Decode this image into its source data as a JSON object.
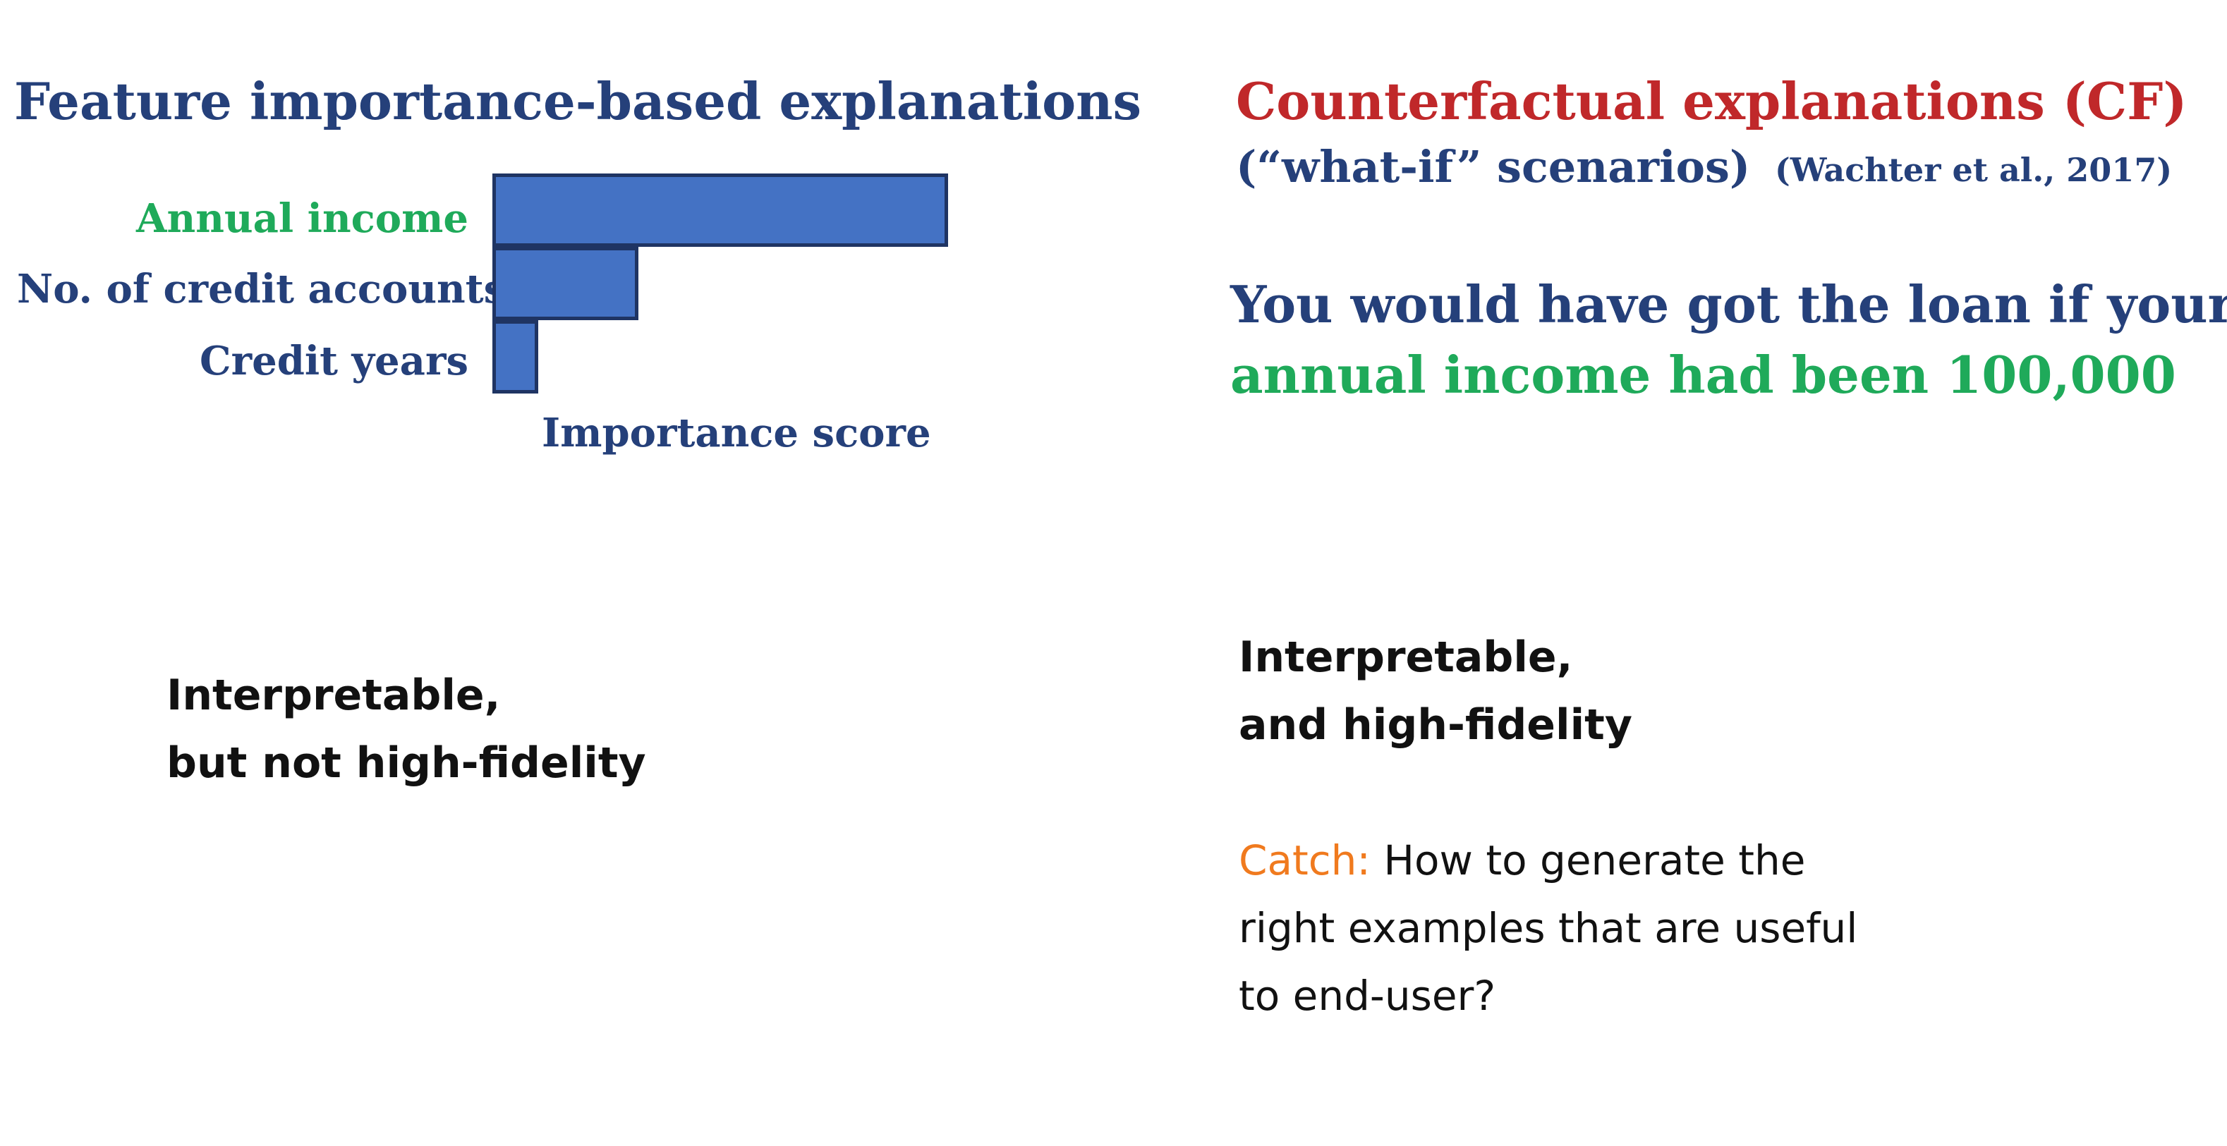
{
  "left": {
    "heading": "Feature importance-based explanations",
    "note_line1": "Interpretable,",
    "note_line2": "but not high-fidelity"
  },
  "chart_data": {
    "type": "bar",
    "orientation": "horizontal",
    "categories": [
      "Annual income",
      "No. of credit accounts",
      "Credit years"
    ],
    "values": [
      1.0,
      0.32,
      0.1
    ],
    "xlabel": "Importance score",
    "label_colors": [
      "#1faa5a",
      "#25407a",
      "#25407a"
    ],
    "bar_color": "#4472c4",
    "bar_edge_color": "#1f3463",
    "grid": false
  },
  "right": {
    "heading": "Counterfactual explanations (CF)",
    "subheading": "(“what-if” scenarios)",
    "citation": "(Wachter et al., 2017)",
    "cf_line1": "You would have got the loan if your",
    "cf_line2": "annual income had been 100,000",
    "note_line1": "Interpretable,",
    "note_line2": "and high-fidelity",
    "catch_label": "Catch:",
    "catch_line1": " How to generate the",
    "catch_line2": "right examples that are useful",
    "catch_line3": "to end-user?"
  },
  "colors": {
    "heading_blue": "#25407a",
    "heading_red": "#c0282a",
    "highlight_green": "#1faa5a",
    "catch_orange": "#f07a1e"
  }
}
